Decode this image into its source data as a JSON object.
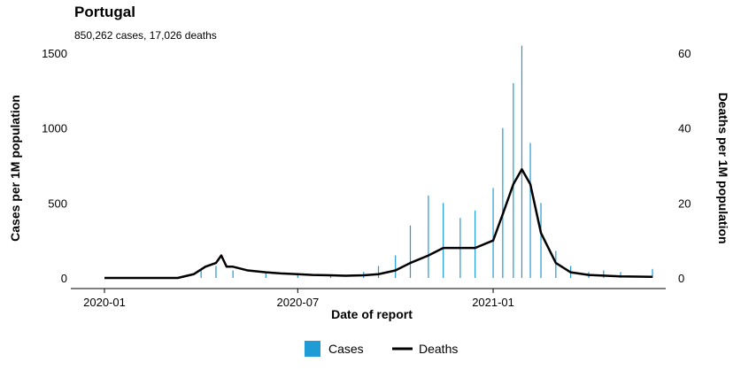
{
  "chart": {
    "title": "Portugal",
    "subtitle": "850,262 cases, 17,026 deaths",
    "xlabel": "Date of report",
    "ylabel_left": "Cases per 1M population",
    "ylabel_right": "Deaths per 1M population",
    "legend": {
      "cases_label": "Cases",
      "deaths_label": "Deaths"
    },
    "colors": {
      "cases": "#1f9bd6",
      "deaths": "#000000"
    },
    "left_ticks": [
      "0",
      "500",
      "1000",
      "1500"
    ],
    "right_ticks": [
      "0",
      "20",
      "40",
      "60"
    ],
    "x_ticks": [
      "2020-01",
      "2020-07",
      "2021-01"
    ]
  },
  "chart_data": {
    "type": "bar",
    "x_range": [
      "2020-01-01",
      "2021-05-31"
    ],
    "ylim_left": [
      0,
      1500
    ],
    "ylim_right": [
      0,
      60
    ],
    "legend_position": "bottom",
    "grid": false,
    "series": [
      {
        "name": "Cases",
        "type": "bar",
        "axis": "left",
        "x": [
          "2020-03-15",
          "2020-04-01",
          "2020-04-15",
          "2020-05-01",
          "2020-06-01",
          "2020-07-01",
          "2020-08-01",
          "2020-09-01",
          "2020-09-15",
          "2020-10-01",
          "2020-10-15",
          "2020-11-01",
          "2020-11-15",
          "2020-12-01",
          "2020-12-15",
          "2021-01-01",
          "2021-01-10",
          "2021-01-20",
          "2021-01-28",
          "2021-02-05",
          "2021-02-15",
          "2021-03-01",
          "2021-03-15",
          "2021-04-01",
          "2021-04-15",
          "2021-05-01",
          "2021-05-31"
        ],
        "values": [
          10,
          60,
          80,
          50,
          30,
          30,
          20,
          40,
          80,
          150,
          350,
          550,
          500,
          400,
          450,
          600,
          1000,
          1300,
          1550,
          900,
          500,
          180,
          80,
          40,
          50,
          40,
          60
        ]
      },
      {
        "name": "Deaths",
        "type": "line",
        "axis": "right",
        "x": [
          "2020-01-01",
          "2020-03-10",
          "2020-03-25",
          "2020-04-05",
          "2020-04-15",
          "2020-04-20",
          "2020-04-25",
          "2020-05-01",
          "2020-05-15",
          "2020-06-01",
          "2020-06-15",
          "2020-07-01",
          "2020-07-15",
          "2020-08-01",
          "2020-08-15",
          "2020-09-01",
          "2020-09-15",
          "2020-10-01",
          "2020-10-15",
          "2020-11-01",
          "2020-11-15",
          "2020-12-01",
          "2020-12-15",
          "2021-01-01",
          "2021-01-10",
          "2021-01-20",
          "2021-01-28",
          "2021-02-05",
          "2021-02-15",
          "2021-03-01",
          "2021-03-15",
          "2021-04-01",
          "2021-05-01",
          "2021-05-31"
        ],
        "values": [
          0,
          0,
          1,
          3,
          4,
          6,
          3,
          3,
          2,
          1.5,
          1.2,
          1,
          0.8,
          0.7,
          0.6,
          0.7,
          1,
          2,
          4,
          6,
          8,
          8,
          8,
          10,
          17,
          25,
          29,
          25,
          12,
          4,
          1.5,
          0.8,
          0.4,
          0.3
        ]
      }
    ]
  }
}
